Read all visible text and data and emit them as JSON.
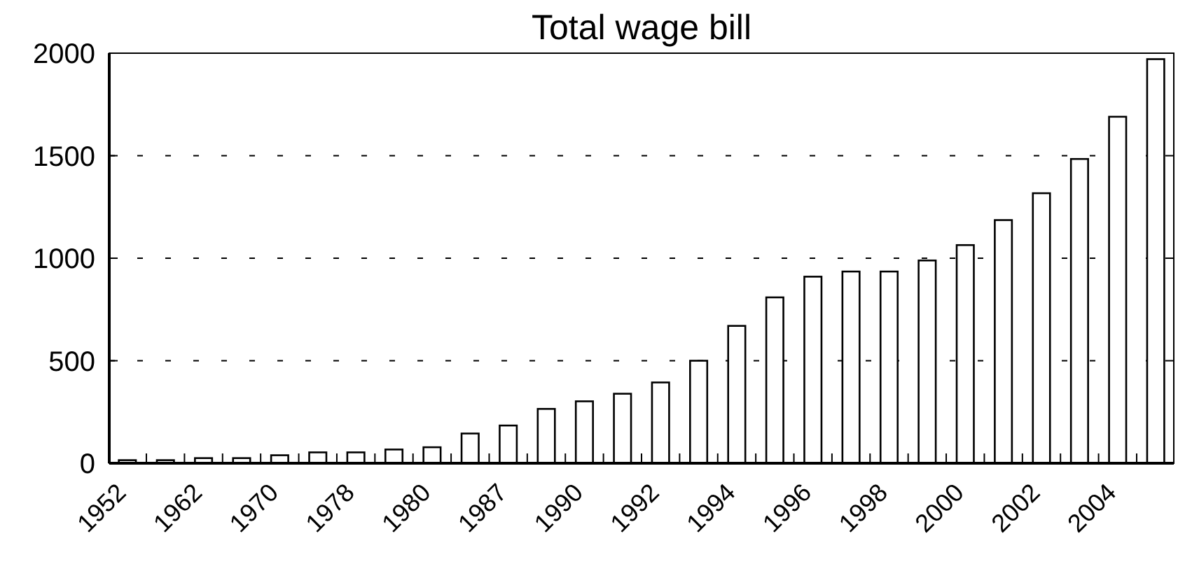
{
  "chart_data": {
    "type": "bar",
    "title": "Total wage bill",
    "categories": [
      "1952",
      null,
      "1962",
      null,
      "1970",
      null,
      "1978",
      null,
      "1980",
      null,
      "1987",
      null,
      "1990",
      null,
      "1992",
      null,
      "1994",
      null,
      "1996",
      null,
      "1998",
      null,
      "2000",
      null,
      "2002",
      null,
      "2004",
      null
    ],
    "values": [
      15,
      15,
      25,
      25,
      39,
      53,
      53,
      67,
      78,
      145,
      184,
      265,
      302,
      339,
      394,
      500,
      670,
      809,
      910,
      935,
      935,
      989,
      1064,
      1186,
      1317,
      1484,
      1690,
      1971
    ],
    "color": "#ffffff",
    "ylim": [
      0,
      2000
    ],
    "yticks": [
      0,
      500,
      1000,
      1500,
      2000
    ],
    "grid": "y"
  }
}
